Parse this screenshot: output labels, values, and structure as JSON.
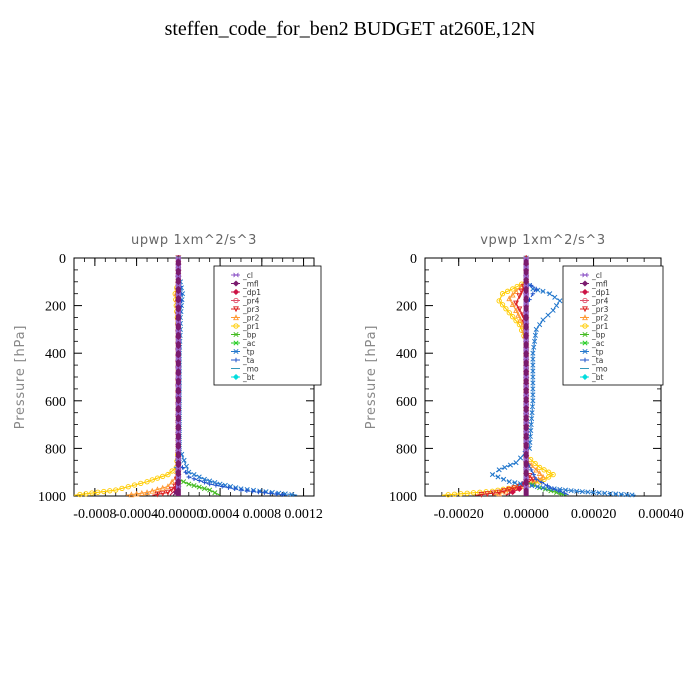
{
  "page_title": "steffen_code_for_ben2  BUDGET at260E,12N",
  "legend_entries": [
    {
      "label": "_cl",
      "color": "#9966cc",
      "marker": "bowtie"
    },
    {
      "label": "_mfl",
      "color": "#7a1a6e",
      "marker": "diamond"
    },
    {
      "label": "_dp1",
      "color": "#cc1144",
      "marker": "diamond"
    },
    {
      "label": "_pr4",
      "color": "#e0506a",
      "marker": "circle"
    },
    {
      "label": "_pr3",
      "color": "#dd2222",
      "marker": "tri"
    },
    {
      "label": "_pr2",
      "color": "#ff9933",
      "marker": "triu"
    },
    {
      "label": "_pr1",
      "color": "#ffcc00",
      "marker": "circle"
    },
    {
      "label": "_bp",
      "color": "#44bb22",
      "marker": "cross"
    },
    {
      "label": "_ac",
      "color": "#22cc22",
      "marker": "cross"
    },
    {
      "label": "_tp",
      "color": "#2277cc",
      "marker": "cross"
    },
    {
      "label": "_ta",
      "color": "#2255cc",
      "marker": "plus"
    },
    {
      "label": "_mo",
      "color": "#3399bb",
      "marker": "dash"
    },
    {
      "label": "_bt",
      "color": "#00dddd",
      "marker": "diamond"
    }
  ],
  "chart_data": [
    {
      "type": "line",
      "title": "upwp   1xm^2/s^3",
      "xlabel": "",
      "ylabel": "Pressure  [hPa]",
      "xlim": [
        -0.001,
        0.0013
      ],
      "ylim": [
        1000,
        0
      ],
      "x_ticks": [
        -0.0008,
        -0.0004,
        0.0,
        0.0004,
        0.0008,
        0.0012
      ],
      "x_tick_labels": [
        "-0.0008",
        "-0.0004",
        "-0.00000",
        "0.0004",
        "0.0008",
        "0.0012"
      ],
      "y_ticks": [
        0,
        200,
        400,
        600,
        800,
        1000
      ],
      "legend_position": "top-right",
      "grid": false,
      "series": [
        {
          "name": "_pr1",
          "points": [
            [
              0,
              100
            ],
            [
              -3e-05,
              150
            ],
            [
              -2e-05,
              200
            ],
            [
              -1e-05,
              250
            ],
            [
              0,
              300
            ],
            [
              0,
              800
            ],
            [
              -2e-05,
              880
            ],
            [
              -0.0001,
              910
            ],
            [
              -0.0003,
              940
            ],
            [
              -0.0006,
              975
            ],
            [
              -0.001,
              997
            ]
          ]
        },
        {
          "name": "_pr2",
          "points": [
            [
              0,
              100
            ],
            [
              -2e-05,
              150
            ],
            [
              -1e-05,
              200
            ],
            [
              0,
              300
            ],
            [
              0,
              850
            ],
            [
              -2e-05,
              920
            ],
            [
              -0.0001,
              960
            ],
            [
              -0.0003,
              985
            ],
            [
              -0.0005,
              997
            ]
          ]
        },
        {
          "name": "_pr3",
          "points": [
            [
              0,
              0
            ],
            [
              0,
              900
            ],
            [
              -3e-05,
              960
            ],
            [
              -0.0001,
              985
            ],
            [
              -0.00025,
              997
            ]
          ]
        },
        {
          "name": "_dp1",
          "points": [
            [
              0,
              0
            ],
            [
              0,
              920
            ],
            [
              -2e-05,
              970
            ],
            [
              -8e-05,
              997
            ]
          ]
        },
        {
          "name": "_mfl",
          "points": [
            [
              0,
              0
            ],
            [
              0,
              960
            ],
            [
              -2e-05,
              985
            ],
            [
              -5e-05,
              997
            ]
          ]
        },
        {
          "name": "_bp",
          "points": [
            [
              0,
              0
            ],
            [
              0,
              930
            ],
            [
              0.0001,
              950
            ],
            [
              0.0003,
              975
            ],
            [
              0.0004,
              997
            ]
          ]
        },
        {
          "name": "_tp",
          "points": [
            [
              2e-05,
              100
            ],
            [
              4e-05,
              150
            ],
            [
              3e-05,
              200
            ],
            [
              2e-05,
              250
            ],
            [
              2e-05,
              300
            ],
            [
              1e-05,
              400
            ],
            [
              1e-05,
              600
            ],
            [
              1e-05,
              800
            ],
            [
              0.0001,
              900
            ],
            [
              0.00025,
              930
            ],
            [
              0.0004,
              950
            ],
            [
              0.0006,
              970
            ],
            [
              0.0009,
              985
            ],
            [
              0.00115,
              997
            ]
          ]
        },
        {
          "name": "_ta",
          "points": [
            [
              2e-05,
              120
            ],
            [
              3e-05,
              180
            ],
            [
              1e-05,
              250
            ],
            [
              1e-05,
              400
            ],
            [
              1e-05,
              850
            ],
            [
              4e-05,
              880
            ],
            [
              0.0001,
              920
            ],
            [
              0.0003,
              950
            ],
            [
              0.0006,
              975
            ],
            [
              0.00105,
              997
            ]
          ]
        },
        {
          "name": "_mo",
          "points": [
            [
              -1e-05,
              850
            ],
            [
              -2e-05,
              880
            ],
            [
              -1e-05,
              900
            ],
            [
              0,
              920
            ]
          ]
        },
        {
          "name": "_cl",
          "points": [
            [
              0,
              0
            ],
            [
              0,
              1000
            ]
          ]
        }
      ]
    },
    {
      "type": "line",
      "title": "vpwp   1xm^2/s^3",
      "xlabel": "",
      "ylabel": "Pressure  [hPa]",
      "xlim": [
        -0.0003,
        0.0004
      ],
      "ylim": [
        1000,
        0
      ],
      "x_ticks": [
        -0.0002,
        0.0,
        0.0002,
        0.0004
      ],
      "x_tick_labels": [
        "-0.00020",
        "0.00000",
        "0.00020",
        "0.00040"
      ],
      "y_ticks": [
        0,
        200,
        400,
        600,
        800,
        1000
      ],
      "legend_position": "top-right",
      "grid": false,
      "series": [
        {
          "name": "_pr1",
          "points": [
            [
              0,
              100
            ],
            [
              -4e-05,
              130
            ],
            [
              -7e-05,
              150
            ],
            [
              -8e-05,
              180
            ],
            [
              -5e-05,
              230
            ],
            [
              -2e-05,
              280
            ],
            [
              0,
              350
            ],
            [
              0,
              830
            ],
            [
              4e-05,
              880
            ],
            [
              8e-05,
              910
            ],
            [
              4e-05,
              940
            ],
            [
              -2e-05,
              960
            ],
            [
              -0.0001,
              980
            ],
            [
              -0.00025,
              997
            ]
          ]
        },
        {
          "name": "_pr2",
          "points": [
            [
              0,
              100
            ],
            [
              -3e-05,
              140
            ],
            [
              -5e-05,
              170
            ],
            [
              -3e-05,
              220
            ],
            [
              -1e-05,
              280
            ],
            [
              0,
              350
            ],
            [
              0,
              850
            ],
            [
              3e-05,
              890
            ],
            [
              5e-05,
              920
            ],
            [
              1e-05,
              950
            ],
            [
              -4e-05,
              975
            ],
            [
              -0.0001,
              997
            ]
          ]
        },
        {
          "name": "_pr3",
          "points": [
            [
              0,
              100
            ],
            [
              -2e-05,
              160
            ],
            [
              -3e-05,
              190
            ],
            [
              -1e-05,
              240
            ],
            [
              0,
              300
            ],
            [
              0,
              900
            ],
            [
              2e-05,
              930
            ],
            [
              -2e-05,
              960
            ],
            [
              -8e-05,
              985
            ],
            [
              -0.00015,
              997
            ]
          ]
        },
        {
          "name": "_dp1",
          "points": [
            [
              0,
              0
            ],
            [
              0,
              930
            ],
            [
              -2e-05,
              970
            ],
            [
              -6e-05,
              997
            ]
          ]
        },
        {
          "name": "_bp",
          "points": [
            [
              0,
              0
            ],
            [
              0,
              940
            ],
            [
              4e-05,
              965
            ],
            [
              9e-05,
              985
            ],
            [
              0.00012,
              997
            ]
          ]
        },
        {
          "name": "_tp",
          "points": [
            [
              0,
              100
            ],
            [
              2e-05,
              130
            ],
            [
              5e-05,
              140
            ],
            [
              7e-05,
              150
            ],
            [
              0.0001,
              180
            ],
            [
              8e-05,
              220
            ],
            [
              5e-05,
              260
            ],
            [
              3e-05,
              300
            ],
            [
              2e-05,
              400
            ],
            [
              2e-05,
              600
            ],
            [
              1e-05,
              800
            ],
            [
              -3e-05,
              860
            ],
            [
              -8e-05,
              890
            ],
            [
              -0.0001,
              910
            ],
            [
              -5e-05,
              940
            ],
            [
              5e-05,
              965
            ],
            [
              0.00015,
              980
            ],
            [
              0.00025,
              990
            ],
            [
              0.00033,
              997
            ]
          ]
        },
        {
          "name": "_ta",
          "points": [
            [
              0,
              100
            ],
            [
              3e-05,
              130
            ],
            [
              2e-05,
              150
            ],
            [
              0,
              200
            ],
            [
              0,
              850
            ],
            [
              3e-05,
              930
            ],
            [
              8e-05,
              970
            ],
            [
              0.00013,
              997
            ]
          ]
        },
        {
          "name": "_cl",
          "points": [
            [
              0,
              0
            ],
            [
              0,
              1000
            ]
          ]
        }
      ]
    }
  ]
}
